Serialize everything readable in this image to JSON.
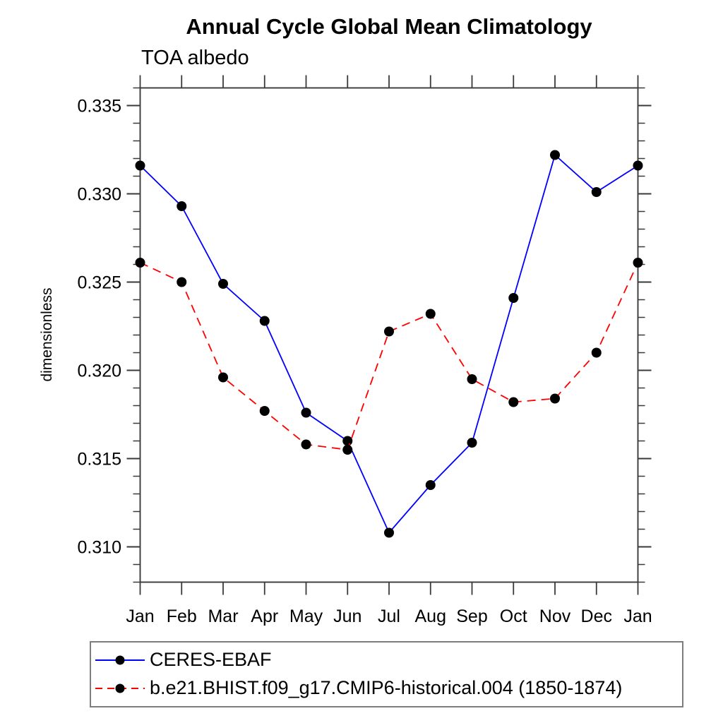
{
  "chart_data": {
    "type": "line",
    "title": "Annual Cycle Global Mean Climatology",
    "subtitle": "TOA albedo",
    "xlabel": "",
    "ylabel": "dimensionless",
    "categories": [
      "Jan",
      "Feb",
      "Mar",
      "Apr",
      "May",
      "Jun",
      "Jul",
      "Aug",
      "Sep",
      "Oct",
      "Nov",
      "Dec",
      "Jan"
    ],
    "series": [
      {
        "name": "CERES-EBAF",
        "line_color": "#0000ff",
        "line_style": "solid",
        "marker": "filled-circle",
        "marker_color": "#000000",
        "values": [
          0.3316,
          0.3293,
          0.3249,
          0.3228,
          0.3176,
          0.316,
          0.3108,
          0.3135,
          0.3159,
          0.3241,
          0.3322,
          0.3301,
          0.3316
        ]
      },
      {
        "name": "b.e21.BHIST.f09_g17.CMIP6-historical.004 (1850-1874)",
        "line_color": "#ff0000",
        "line_style": "dashed",
        "marker": "filled-circle",
        "marker_color": "#000000",
        "values": [
          0.3261,
          0.325,
          0.3196,
          0.3177,
          0.3158,
          0.3155,
          0.3222,
          0.3232,
          0.3195,
          0.3182,
          0.3184,
          0.321,
          0.3261
        ]
      }
    ],
    "ylim": [
      0.308,
      0.336
    ],
    "ytick_major": [
      0.31,
      0.315,
      0.32,
      0.325,
      0.33,
      0.335
    ],
    "ytick_labels": [
      "0.310",
      "0.315",
      "0.320",
      "0.325",
      "0.330",
      "0.335"
    ],
    "ytick_minor_step": 0.001,
    "grid": false,
    "legend_position": "bottom-left",
    "axis_color": "#3a3a3a",
    "text_color": "#000000"
  }
}
